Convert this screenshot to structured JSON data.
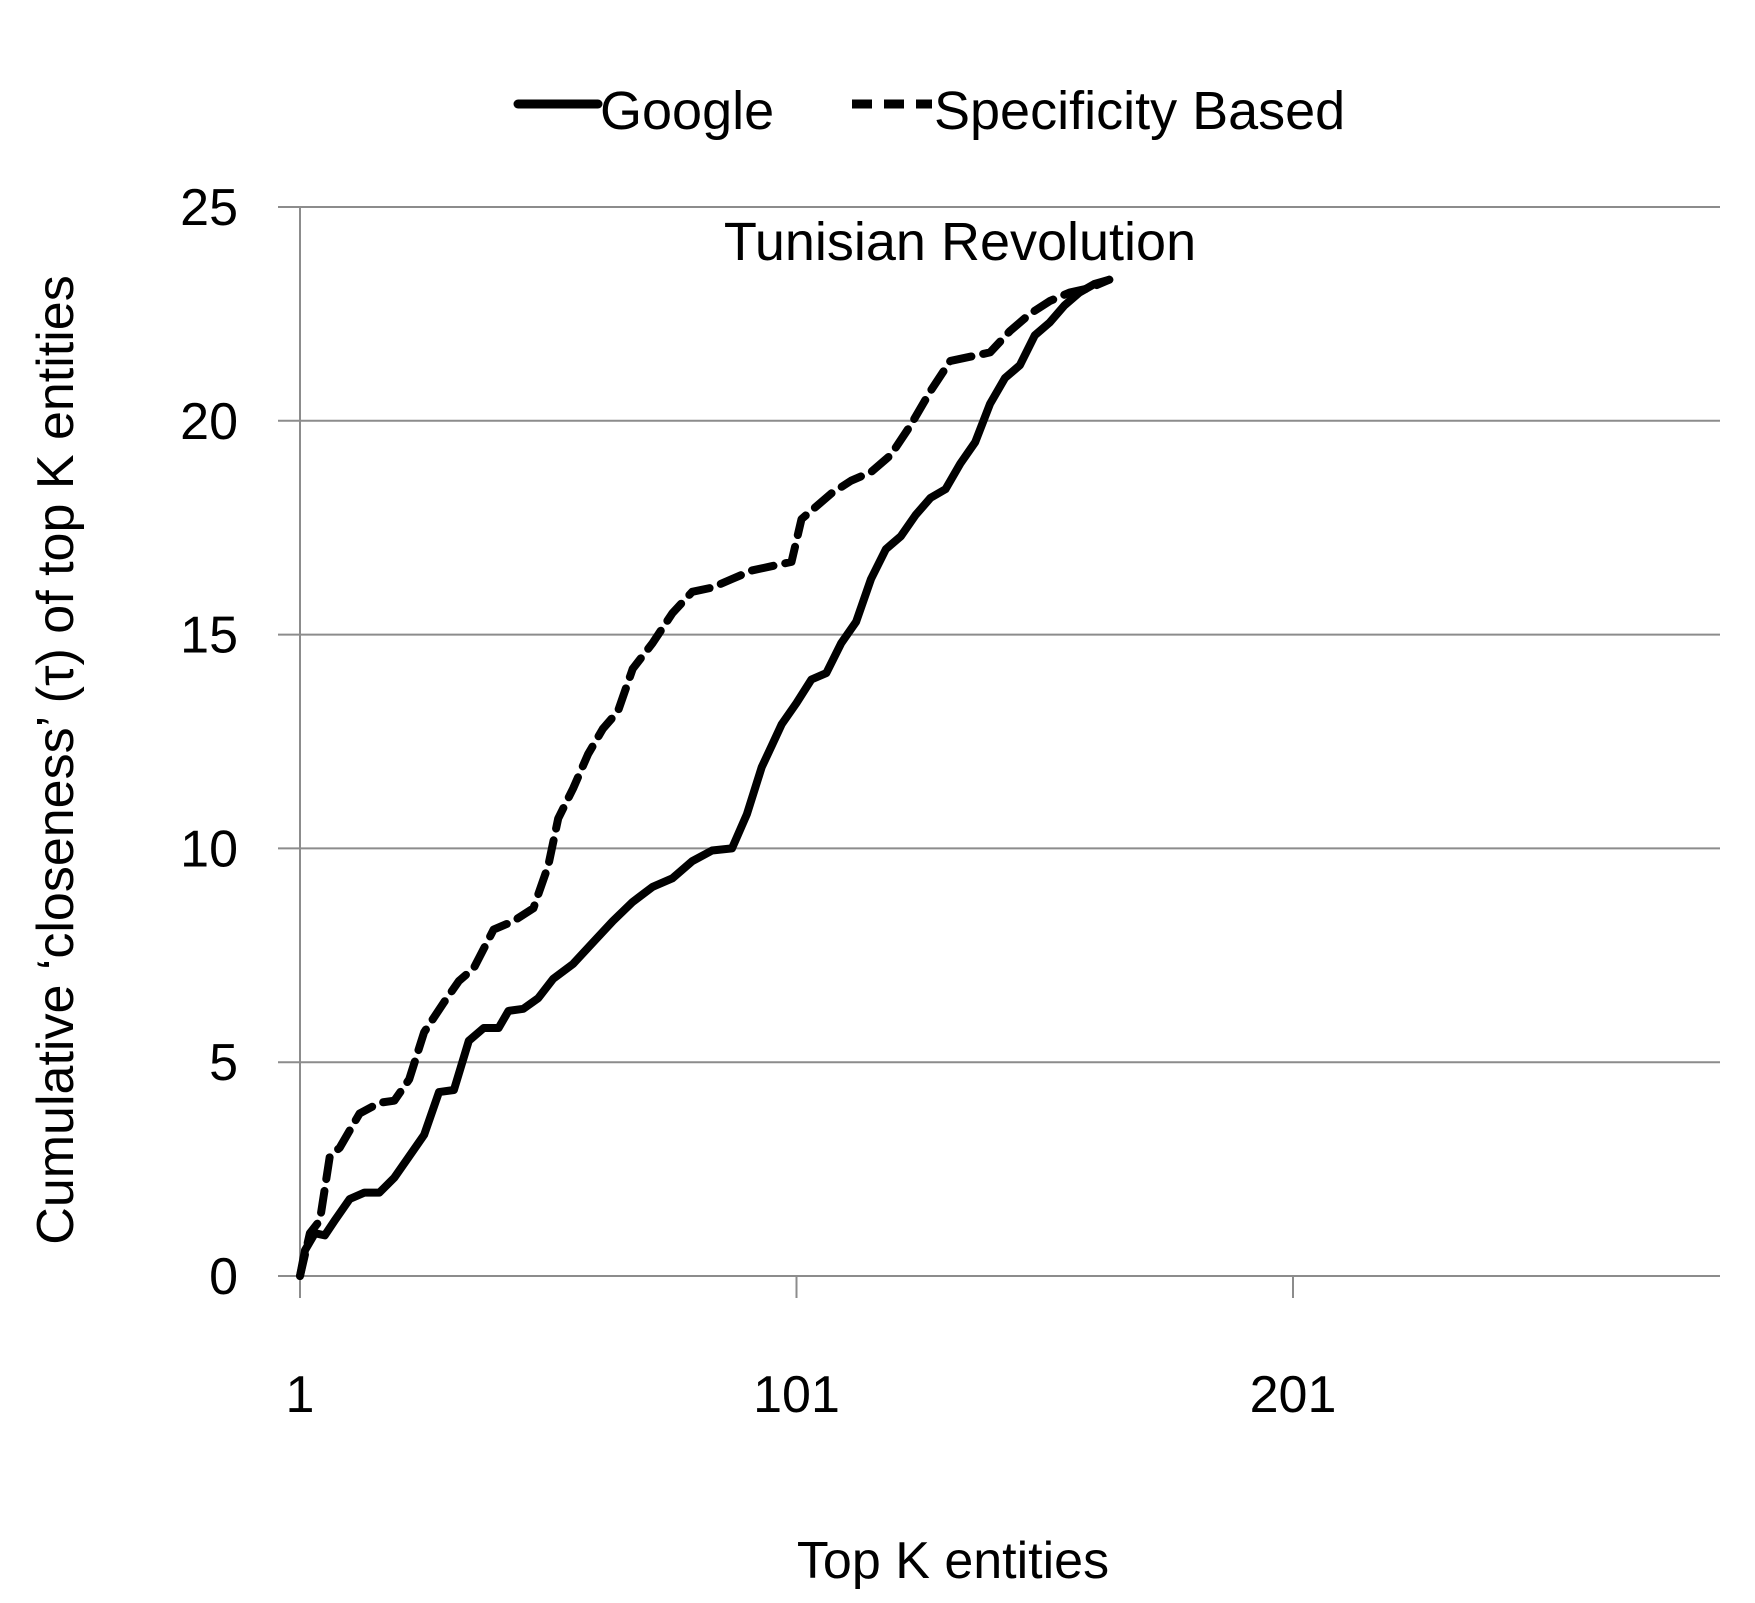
{
  "chart_data": {
    "type": "line",
    "title": "Tunisian Revolution",
    "xlabel": "Top K entities",
    "ylabel": "Cumulative ‘closeness’ (τ) of top K entities",
    "xlim": [
      1,
      287
    ],
    "ylim": [
      0,
      25
    ],
    "x_ticks": [
      1,
      101,
      201
    ],
    "y_ticks": [
      0,
      5,
      10,
      15,
      20,
      25
    ],
    "grid": "horizontal",
    "legend_position": "top",
    "series": [
      {
        "name": "Google",
        "style": "solid",
        "x": [
          1,
          2,
          4,
          6,
          8,
          11,
          14,
          17,
          20,
          23,
          26,
          29,
          32,
          35,
          38,
          41,
          43,
          46,
          49,
          52,
          56,
          60,
          64,
          68,
          72,
          76,
          80,
          84,
          88,
          91,
          94,
          96,
          98,
          101,
          104,
          107,
          110,
          113,
          116,
          119,
          122,
          125,
          128,
          131,
          134,
          137,
          140,
          143,
          146,
          149,
          152,
          155,
          158,
          161,
          164
        ],
        "values": [
          0,
          0.6,
          1.0,
          0.95,
          1.3,
          1.8,
          1.95,
          1.95,
          2.3,
          2.8,
          3.3,
          4.3,
          4.35,
          5.5,
          5.8,
          5.8,
          6.2,
          6.25,
          6.5,
          6.95,
          7.3,
          7.8,
          8.3,
          8.75,
          9.1,
          9.3,
          9.7,
          9.95,
          10.0,
          10.8,
          11.9,
          12.4,
          12.9,
          13.4,
          13.95,
          14.1,
          14.8,
          15.3,
          16.3,
          17.0,
          17.3,
          17.8,
          18.2,
          18.4,
          19.0,
          19.5,
          20.4,
          21.0,
          21.3,
          22.0,
          22.3,
          22.7,
          23.0,
          23.2,
          23.3
        ]
      },
      {
        "name": "Specificity Based",
        "style": "dashed",
        "x": [
          1,
          3,
          5,
          7,
          9,
          13,
          17,
          20,
          23,
          26,
          30,
          33,
          36,
          40,
          44,
          48,
          51,
          53,
          56,
          59,
          62,
          65,
          68,
          72,
          76,
          80,
          84,
          88,
          92,
          96,
          100,
          102,
          104,
          108,
          112,
          116,
          120,
          124,
          128,
          132,
          136,
          140,
          144,
          148,
          152,
          156,
          160,
          164
        ],
        "values": [
          0,
          1.0,
          1.3,
          2.8,
          3.0,
          3.8,
          4.05,
          4.1,
          4.6,
          5.7,
          6.4,
          6.9,
          7.2,
          8.1,
          8.3,
          8.6,
          9.6,
          10.7,
          11.4,
          12.2,
          12.8,
          13.2,
          14.2,
          14.8,
          15.5,
          16.0,
          16.1,
          16.3,
          16.5,
          16.6,
          16.7,
          17.7,
          17.9,
          18.3,
          18.6,
          18.8,
          19.2,
          19.9,
          20.7,
          21.4,
          21.5,
          21.6,
          22.1,
          22.5,
          22.8,
          23.0,
          23.1,
          23.3
        ]
      }
    ]
  }
}
